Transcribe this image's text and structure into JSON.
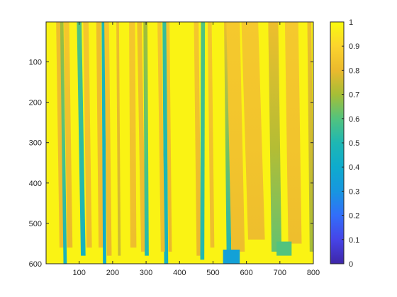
{
  "chart_data": {
    "type": "heatmap",
    "title": "",
    "xlabel": "",
    "ylabel": "",
    "xlim": [
      1,
      800
    ],
    "ylim": [
      1,
      600
    ],
    "y_direction": "reversed",
    "x_ticks": [
      100,
      200,
      300,
      400,
      500,
      600,
      700,
      800
    ],
    "y_ticks": [
      100,
      200,
      300,
      400,
      500,
      600
    ],
    "colormap": "parula",
    "colorbar": {
      "limits": [
        0,
        1
      ],
      "ticks": [
        0,
        0.1,
        0.2,
        0.3,
        0.4,
        0.5,
        0.6,
        0.7,
        0.8,
        0.9,
        1
      ],
      "tick_labels": [
        "0",
        "0.1",
        "0.2",
        "0.3",
        "0.4",
        "0.5",
        "0.6",
        "0.7",
        "0.8",
        "0.9",
        "1"
      ]
    },
    "background_value": 0.98,
    "streaks": [
      {
        "x_top": 38,
        "x_bottom": 48,
        "width": 14,
        "v_top": 0.82,
        "v_bottom": 0.82,
        "y_end": 560
      },
      {
        "x_top": 48,
        "x_bottom": 58,
        "width": 10,
        "v_top": 0.7,
        "v_bottom": 0.45,
        "y_end": 600
      },
      {
        "x_top": 62,
        "x_bottom": 72,
        "width": 16,
        "v_top": 0.85,
        "v_bottom": 0.8,
        "y_end": 560
      },
      {
        "x_top": 100,
        "x_bottom": 112,
        "width": 14,
        "v_top": 0.6,
        "v_bottom": 0.45,
        "y_end": 580
      },
      {
        "x_top": 120,
        "x_bottom": 130,
        "width": 16,
        "v_top": 0.85,
        "v_bottom": 0.82,
        "y_end": 560
      },
      {
        "x_top": 158,
        "x_bottom": 165,
        "width": 14,
        "v_top": 0.82,
        "v_bottom": 0.82,
        "y_end": 560
      },
      {
        "x_top": 172,
        "x_bottom": 176,
        "width": 10,
        "v_top": 0.5,
        "v_bottom": 0.4,
        "y_end": 600
      },
      {
        "x_top": 182,
        "x_bottom": 190,
        "width": 14,
        "v_top": 0.85,
        "v_bottom": 0.8,
        "y_end": 580
      },
      {
        "x_top": 215,
        "x_bottom": 220,
        "width": 8,
        "v_top": 0.82,
        "v_bottom": 0.75,
        "y_end": 580
      },
      {
        "x_top": 258,
        "x_bottom": 262,
        "width": 18,
        "v_top": 0.85,
        "v_bottom": 0.82,
        "y_end": 560
      },
      {
        "x_top": 280,
        "x_bottom": 292,
        "width": 14,
        "v_top": 0.82,
        "v_bottom": 0.82,
        "y_end": 570
      },
      {
        "x_top": 298,
        "x_bottom": 302,
        "width": 12,
        "v_top": 0.7,
        "v_bottom": 0.5,
        "y_end": 580
      },
      {
        "x_top": 355,
        "x_bottom": 360,
        "width": 12,
        "v_top": 0.55,
        "v_bottom": 0.45,
        "y_end": 600
      },
      {
        "x_top": 340,
        "x_bottom": 350,
        "width": 12,
        "v_top": 0.85,
        "v_bottom": 0.82,
        "y_end": 570
      },
      {
        "x_top": 365,
        "x_bottom": 372,
        "width": 10,
        "v_top": 0.85,
        "v_bottom": 0.8,
        "y_end": 570
      },
      {
        "x_top": 450,
        "x_bottom": 458,
        "width": 14,
        "v_top": 0.85,
        "v_bottom": 0.8,
        "y_end": 580
      },
      {
        "x_top": 470,
        "x_bottom": 468,
        "width": 12,
        "v_top": 0.6,
        "v_bottom": 0.5,
        "y_end": 590
      },
      {
        "x_top": 490,
        "x_bottom": 498,
        "width": 12,
        "v_top": 0.85,
        "v_bottom": 0.82,
        "y_end": 560
      },
      {
        "x_top": 540,
        "x_bottom": 548,
        "width": 14,
        "v_top": 0.82,
        "v_bottom": 0.45,
        "y_end": 600
      },
      {
        "x_top": 560,
        "x_bottom": 575,
        "width": 40,
        "v_top": 0.86,
        "v_bottom": 0.82,
        "y_end": 570
      },
      {
        "x_top": 610,
        "x_bottom": 630,
        "width": 50,
        "v_top": 0.86,
        "v_bottom": 0.82,
        "y_end": 540
      },
      {
        "x_top": 680,
        "x_bottom": 690,
        "width": 30,
        "v_top": 0.82,
        "v_bottom": 0.62,
        "y_end": 570
      },
      {
        "x_top": 735,
        "x_bottom": 745,
        "width": 40,
        "v_top": 0.86,
        "v_bottom": 0.82,
        "y_end": 550
      },
      {
        "x_top": 788,
        "x_bottom": 795,
        "width": 12,
        "v_top": 0.82,
        "v_bottom": 0.7,
        "y_end": 570
      }
    ],
    "bottom_patches": [
      {
        "x_start": 530,
        "x_end": 580,
        "y_start": 565,
        "y_end": 600,
        "value": 0.35
      },
      {
        "x_start": 690,
        "x_end": 735,
        "y_start": 545,
        "y_end": 580,
        "value": 0.6
      }
    ]
  }
}
